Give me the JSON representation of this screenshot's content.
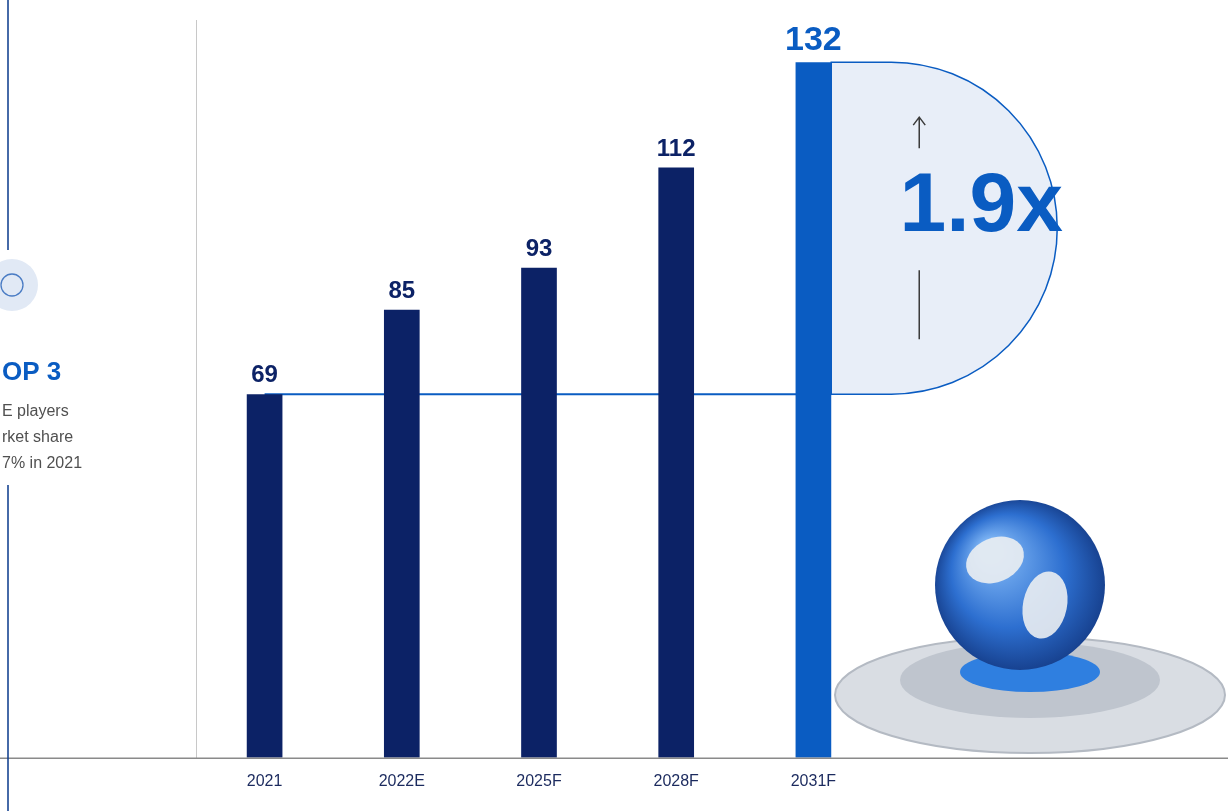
{
  "chart_data": {
    "type": "bar",
    "categories": [
      "2021",
      "2022E",
      "2025F",
      "2028F",
      "2031F"
    ],
    "values": [
      69,
      85,
      93,
      112,
      132
    ],
    "colors": [
      "#0c2266",
      "#0c2266",
      "#0c2266",
      "#0c2266",
      "#0a5cc2"
    ],
    "ylim": [
      0,
      140
    ],
    "grid": false,
    "tick_labels": "x",
    "data_labels": true,
    "annotations": {
      "growth": "1.9x",
      "note_title": "OP 3",
      "note_lines": [
        "E players",
        "rket share",
        "7% in 2021"
      ]
    }
  }
}
